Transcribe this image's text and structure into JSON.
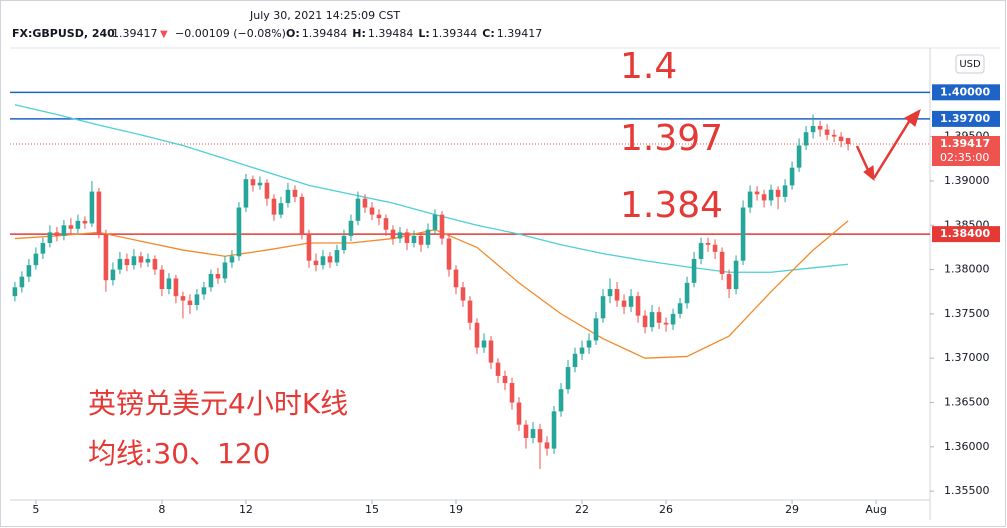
{
  "header": {
    "datetime": "July 30, 2021 14:25:09 CST",
    "symbol": "FX:GBPUSD, 240",
    "last": "1.39417",
    "change": "−0.00109 (−0.08%)",
    "ohlc": [
      {
        "label": "O:",
        "value": "1.39484"
      },
      {
        "label": "H:",
        "value": "1.39484"
      },
      {
        "label": "L:",
        "value": "1.39344"
      },
      {
        "label": "C:",
        "value": "1.39417"
      }
    ]
  },
  "chart_data": {
    "type": "candlestick",
    "open": [
      1.377,
      1.378,
      1.3792,
      1.3805,
      1.3818,
      1.383,
      1.3842,
      1.3838,
      1.385,
      1.3846,
      1.3855,
      1.3852,
      1.3888,
      1.384,
      1.3788,
      1.38,
      1.3812,
      1.3805,
      1.3815,
      1.3808,
      1.3812,
      1.38,
      1.3778,
      1.379,
      1.377,
      1.3765,
      1.376,
      1.3772,
      1.378,
      1.3795,
      1.379,
      1.3808,
      1.3815,
      1.387,
      1.3902,
      1.3895,
      1.3898,
      1.388,
      1.3862,
      1.3875,
      1.389,
      1.3882,
      1.384,
      1.381,
      1.3805,
      1.3815,
      1.3808,
      1.3822,
      1.3838,
      1.3855,
      1.388,
      1.387,
      1.3862,
      1.3858,
      1.3845,
      1.3835,
      1.3842,
      1.383,
      1.3838,
      1.3828,
      1.3845,
      1.3862,
      1.3835,
      1.38,
      1.378,
      1.3765,
      1.374,
      1.3712,
      1.372,
      1.3695,
      1.368,
      1.3672,
      1.365,
      1.3625,
      1.361,
      1.362,
      1.3605,
      1.3598,
      1.364,
      1.3665,
      1.369,
      1.3705,
      1.3712,
      1.372,
      1.3745,
      1.377,
      1.3778,
      1.3765,
      1.3758,
      1.377,
      1.3748,
      1.3735,
      1.3752,
      1.374,
      1.3738,
      1.375,
      1.3762,
      1.3785,
      1.3812,
      1.383,
      1.3828,
      1.382,
      1.3795,
      1.3778,
      1.381,
      1.387,
      1.3888,
      1.3885,
      1.3878,
      1.389,
      1.3882,
      1.3895,
      1.3915,
      1.394,
      1.3955,
      1.3962,
      1.3958,
      1.3952,
      1.395,
      1.39484
    ],
    "high": [
      1.3786,
      1.3798,
      1.3812,
      1.3825,
      1.3836,
      1.385,
      1.3848,
      1.3856,
      1.3858,
      1.3862,
      1.386,
      1.39,
      1.3892,
      1.3845,
      1.3808,
      1.382,
      1.3818,
      1.3823,
      1.382,
      1.3818,
      1.3816,
      1.3805,
      1.3796,
      1.3794,
      1.3775,
      1.3772,
      1.3778,
      1.3786,
      1.38,
      1.3802,
      1.3815,
      1.3822,
      1.3876,
      1.3908,
      1.3906,
      1.3905,
      1.3902,
      1.3885,
      1.3882,
      1.3898,
      1.3895,
      1.3886,
      1.3845,
      1.3818,
      1.3822,
      1.382,
      1.3828,
      1.3845,
      1.3862,
      1.3888,
      1.3885,
      1.3876,
      1.3868,
      1.3862,
      1.385,
      1.3848,
      1.3846,
      1.3844,
      1.3842,
      1.3852,
      1.3868,
      1.3866,
      1.384,
      1.3805,
      1.3786,
      1.377,
      1.3745,
      1.3728,
      1.3725,
      1.37,
      1.3686,
      1.3678,
      1.3656,
      1.363,
      1.3628,
      1.3626,
      1.3612,
      1.3646,
      1.3672,
      1.3698,
      1.3712,
      1.372,
      1.3728,
      1.3752,
      1.3778,
      1.379,
      1.3786,
      1.3772,
      1.3778,
      1.3775,
      1.3754,
      1.376,
      1.3758,
      1.3746,
      1.3756,
      1.3768,
      1.3792,
      1.382,
      1.3836,
      1.3836,
      1.3834,
      1.3825,
      1.38,
      1.3816,
      1.3878,
      1.3895,
      1.3894,
      1.389,
      1.3896,
      1.3894,
      1.3902,
      1.3922,
      1.3948,
      1.3962,
      1.3975,
      1.3968,
      1.3964,
      1.3958,
      1.3955,
      1.39484
    ],
    "low": [
      1.3764,
      1.3774,
      1.3786,
      1.38,
      1.3812,
      1.3825,
      1.3832,
      1.3833,
      1.384,
      1.3841,
      1.3846,
      1.3848,
      1.3835,
      1.3775,
      1.3782,
      1.3795,
      1.3798,
      1.38,
      1.3802,
      1.3803,
      1.3794,
      1.377,
      1.3772,
      1.3762,
      1.3745,
      1.375,
      1.3754,
      1.3766,
      1.3775,
      1.3784,
      1.3785,
      1.3802,
      1.381,
      1.3865,
      1.3888,
      1.389,
      1.3872,
      1.3855,
      1.3858,
      1.387,
      1.3876,
      1.3834,
      1.3802,
      1.3798,
      1.38,
      1.3802,
      1.3804,
      1.3818,
      1.3832,
      1.385,
      1.3864,
      1.3856,
      1.385,
      1.3838,
      1.3828,
      1.383,
      1.3822,
      1.3825,
      1.382,
      1.3824,
      1.384,
      1.3828,
      1.3792,
      1.3772,
      1.3758,
      1.3732,
      1.3705,
      1.3706,
      1.3688,
      1.3672,
      1.3664,
      1.3642,
      1.3618,
      1.3598,
      1.3604,
      1.3575,
      1.359,
      1.3592,
      1.3634,
      1.366,
      1.3684,
      1.3698,
      1.3705,
      1.3715,
      1.374,
      1.3762,
      1.3758,
      1.375,
      1.3752,
      1.374,
      1.3728,
      1.373,
      1.3733,
      1.373,
      1.3732,
      1.3745,
      1.3756,
      1.378,
      1.3806,
      1.382,
      1.3812,
      1.3788,
      1.3768,
      1.3772,
      1.3805,
      1.3864,
      1.3878,
      1.387,
      1.3872,
      1.3868,
      1.3876,
      1.389,
      1.391,
      1.3935,
      1.3948,
      1.395,
      1.3946,
      1.3944,
      1.3938,
      1.39344
    ],
    "close": [
      1.378,
      1.3792,
      1.3805,
      1.3818,
      1.383,
      1.3842,
      1.3838,
      1.385,
      1.3846,
      1.3855,
      1.3852,
      1.3888,
      1.384,
      1.3788,
      1.38,
      1.3812,
      1.3805,
      1.3815,
      1.3808,
      1.3812,
      1.38,
      1.3778,
      1.379,
      1.377,
      1.3765,
      1.376,
      1.3772,
      1.378,
      1.3795,
      1.379,
      1.3808,
      1.3815,
      1.387,
      1.3902,
      1.3895,
      1.3898,
      1.388,
      1.3862,
      1.3875,
      1.389,
      1.3882,
      1.384,
      1.381,
      1.3805,
      1.3815,
      1.3808,
      1.3822,
      1.3838,
      1.3855,
      1.388,
      1.387,
      1.3862,
      1.3858,
      1.3845,
      1.3835,
      1.3842,
      1.383,
      1.3838,
      1.3828,
      1.3845,
      1.3862,
      1.3835,
      1.38,
      1.378,
      1.3765,
      1.374,
      1.3712,
      1.372,
      1.3695,
      1.368,
      1.3672,
      1.365,
      1.3625,
      1.361,
      1.362,
      1.3605,
      1.3598,
      1.364,
      1.3665,
      1.369,
      1.3705,
      1.3712,
      1.372,
      1.3745,
      1.377,
      1.3778,
      1.3765,
      1.3758,
      1.377,
      1.3748,
      1.3735,
      1.3752,
      1.374,
      1.3738,
      1.375,
      1.3762,
      1.3785,
      1.3812,
      1.383,
      1.3828,
      1.382,
      1.3795,
      1.3778,
      1.381,
      1.387,
      1.3888,
      1.3885,
      1.3878,
      1.389,
      1.3882,
      1.3895,
      1.3915,
      1.394,
      1.3955,
      1.3962,
      1.3958,
      1.3952,
      1.395,
      1.3945,
      1.39417
    ],
    "up_color": "#26a69a",
    "down_color": "#ef5350",
    "lines": [
      {
        "color": "#4dd0d6",
        "x": [
          0,
          6,
          12,
          18,
          24,
          30,
          36,
          42,
          48,
          54,
          60,
          66,
          72,
          78,
          84,
          90,
          96,
          102,
          108,
          114,
          119
        ],
        "values": [
          1.3986,
          1.3975,
          1.3963,
          1.3952,
          1.394,
          1.3925,
          1.391,
          1.3895,
          1.3885,
          1.3875,
          1.3862,
          1.385,
          1.384,
          1.3828,
          1.3818,
          1.381,
          1.3803,
          1.3797,
          1.3797,
          1.3802,
          1.3806
        ]
      },
      {
        "color": "#f5892a",
        "x": [
          0,
          6,
          12,
          18,
          24,
          30,
          36,
          42,
          48,
          54,
          60,
          66,
          72,
          78,
          84,
          90,
          96,
          102,
          108,
          114,
          119
        ],
        "values": [
          1.3835,
          1.3838,
          1.3842,
          1.3832,
          1.3822,
          1.3815,
          1.3822,
          1.383,
          1.383,
          1.3835,
          1.3845,
          1.3825,
          1.3785,
          1.375,
          1.3722,
          1.37,
          1.3702,
          1.3725,
          1.3775,
          1.3822,
          1.3855
        ]
      }
    ],
    "xlim": [
      -0.7,
      130.7
    ],
    "xticks": [
      {
        "value": 3,
        "label": "5"
      },
      {
        "value": 21,
        "label": "8"
      },
      {
        "value": 33,
        "label": "12"
      },
      {
        "value": 51,
        "label": "15"
      },
      {
        "value": 63,
        "label": "19"
      },
      {
        "value": 81,
        "label": "22"
      },
      {
        "value": 93,
        "label": "26"
      },
      {
        "value": 111,
        "label": "29"
      },
      {
        "value": 123,
        "label": "Aug"
      }
    ],
    "ylim": [
      1.354,
      1.405
    ],
    "yticks": [
      {
        "value": 1.355,
        "label": "1.35500"
      },
      {
        "value": 1.36,
        "label": "1.36000"
      },
      {
        "value": 1.365,
        "label": "1.36500"
      },
      {
        "value": 1.37,
        "label": "1.37000"
      },
      {
        "value": 1.375,
        "label": "1.37500"
      },
      {
        "value": 1.38,
        "label": "1.38000"
      },
      {
        "value": 1.385,
        "label": "1.38500"
      },
      {
        "value": 1.39,
        "label": "1.39000"
      },
      {
        "value": 1.395,
        "label": "1.39500"
      }
    ],
    "hlines": [
      {
        "value": 1.4,
        "label": "1.40000",
        "color": "#1e63c8"
      },
      {
        "value": 1.397,
        "label": "1.39700",
        "color": "#1e63c8"
      },
      {
        "value": 1.384,
        "label": "1.38400",
        "color": "#e53935"
      }
    ],
    "current_price": {
      "value": 1.39417,
      "label": "1.39417",
      "countdown": "02:35:00",
      "color": "#ef5350"
    },
    "currency": "USD",
    "annotations": [
      "1.4",
      "1.397",
      "1.384",
      "英镑兑美元4小时K线",
      "均线:30、120"
    ]
  }
}
